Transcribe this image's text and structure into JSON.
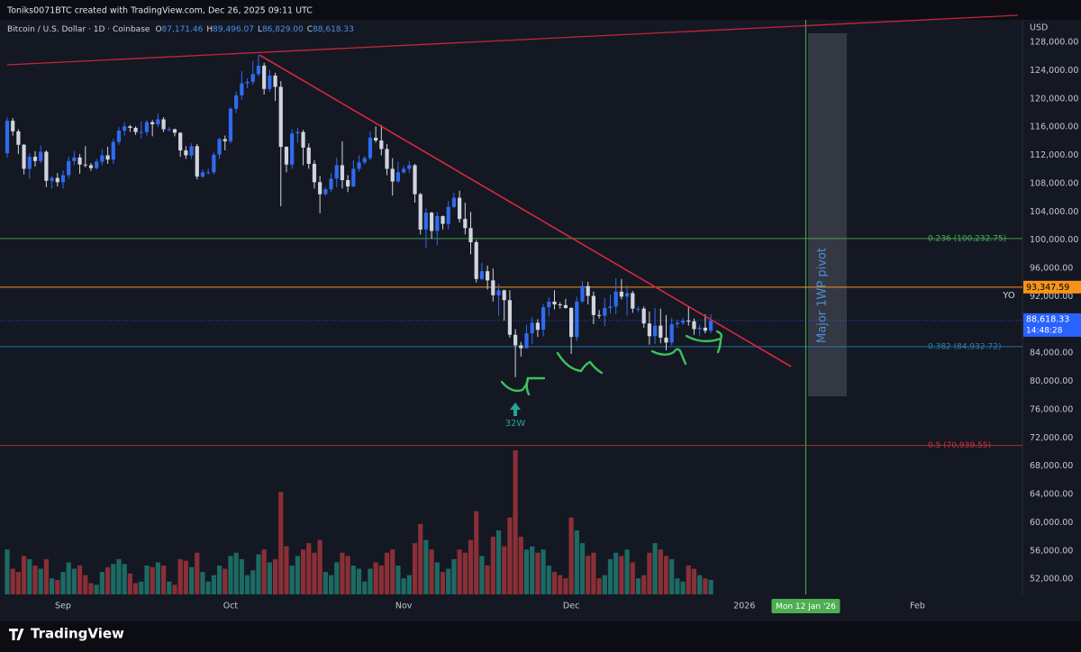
{
  "header": "Toniks0071BTC created with TradingView.com, Dec 26, 2025 09:11 UTC",
  "footer": "TradingView",
  "chart_data": {
    "type": "candlestick",
    "title": "Bitcoin / U.S. Dollar · 1D · Coinbase",
    "ohlc_keys": [
      "O",
      "H",
      "L",
      "C"
    ],
    "ohlc_labels": [
      "87,171.46",
      "89,496.07",
      "86,829.00",
      "88,618.33"
    ],
    "currency": "USD",
    "open": [
      112300,
      116900,
      115400,
      113500,
      110100,
      111800,
      111200,
      112500,
      108400,
      108800,
      108200,
      109200,
      111200,
      111700,
      110700,
      110600,
      110200,
      111100,
      112000,
      111400,
      113900,
      115500,
      116100,
      115900,
      115300,
      115300,
      116700,
      116400,
      117100,
      115700,
      115700,
      115200,
      112700,
      112000,
      113300,
      109000,
      109600,
      109600,
      112100,
      114300,
      114000,
      118600,
      120500,
      122200,
      122400,
      123500,
      124700,
      121400,
      123300,
      121700,
      113200,
      110700,
      115100,
      115300,
      113100,
      110800,
      108200,
      106500,
      107200,
      108700,
      110600,
      108500,
      107600,
      110100,
      111000,
      111600,
      114500,
      114100,
      112900,
      110100,
      108300,
      109600,
      110100,
      110600,
      106500,
      101500,
      103900,
      101300,
      103400,
      102300,
      104700,
      106000,
      103000,
      101700,
      99700,
      94500,
      95600,
      94300,
      92200,
      92900,
      91500,
      86600,
      85100,
      84700,
      86800,
      88300,
      87300,
      90500,
      91300,
      90900,
      90800,
      90400,
      86300,
      91300,
      93500,
      92100,
      89400,
      89300,
      90400,
      90600,
      92700,
      92000,
      92500,
      90300,
      90300,
      88200,
      86400,
      87900,
      86200,
      85500,
      88100,
      88300,
      88600,
      88500,
      87400,
      87600,
      87171.46
    ],
    "high": [
      117400,
      117300,
      115700,
      113600,
      112300,
      112600,
      113400,
      112700,
      109100,
      109500,
      109900,
      111800,
      112600,
      112200,
      113300,
      110900,
      111500,
      112900,
      113200,
      114300,
      116000,
      116700,
      116300,
      116100,
      116800,
      117000,
      117000,
      117900,
      117400,
      116000,
      115800,
      115300,
      113300,
      113700,
      113600,
      110000,
      110100,
      112400,
      114500,
      114800,
      118800,
      121000,
      123900,
      122900,
      125400,
      126200,
      125100,
      124100,
      123700,
      122500,
      113300,
      115700,
      115900,
      115600,
      113700,
      111300,
      109100,
      107500,
      109500,
      111700,
      114000,
      109200,
      111300,
      112000,
      111900,
      115400,
      116100,
      116300,
      113600,
      111600,
      111100,
      110500,
      111200,
      110800,
      106700,
      104500,
      104000,
      104000,
      103500,
      105500,
      106700,
      107000,
      105300,
      104000,
      100000,
      96800,
      96400,
      96000,
      93800,
      93000,
      92900,
      87400,
      85600,
      88000,
      89100,
      88800,
      91000,
      91900,
      92900,
      91200,
      91700,
      90500,
      92000,
      94200,
      94100,
      92700,
      90100,
      91800,
      92300,
      94600,
      94500,
      93600,
      92800,
      90600,
      90600,
      89900,
      90400,
      90300,
      89400,
      89000,
      88700,
      89000,
      90600,
      88900,
      88000,
      89500,
      89496.07
    ],
    "low": [
      111700,
      114800,
      112200,
      109300,
      108700,
      110400,
      110900,
      107500,
      107300,
      107600,
      107300,
      108700,
      110600,
      109400,
      110300,
      109800,
      110000,
      110600,
      110800,
      110800,
      113500,
      114800,
      115300,
      114900,
      114400,
      114800,
      114700,
      116000,
      115300,
      115400,
      114700,
      111800,
      111500,
      111500,
      108600,
      108800,
      109300,
      109300,
      111500,
      112700,
      113700,
      118000,
      119900,
      121500,
      122000,
      123200,
      120600,
      121000,
      119700,
      104800,
      109600,
      110100,
      113800,
      110600,
      110100,
      107300,
      103800,
      106300,
      106800,
      107500,
      107300,
      106800,
      107500,
      109700,
      110700,
      111300,
      113800,
      112000,
      109200,
      106300,
      108100,
      109400,
      109500,
      105300,
      100800,
      98900,
      100200,
      99300,
      101500,
      101500,
      104500,
      102500,
      100800,
      98000,
      94000,
      94300,
      93000,
      91300,
      89300,
      88600,
      86200,
      80600,
      83500,
      84700,
      85300,
      86300,
      86400,
      89200,
      90200,
      90300,
      90300,
      83900,
      85700,
      91100,
      90900,
      88100,
      88900,
      87800,
      89600,
      89500,
      91600,
      89300,
      89700,
      89800,
      87600,
      85200,
      85300,
      85400,
      84400,
      85100,
      87600,
      88000,
      87900,
      86600,
      86400,
      86800,
      86829.0
    ],
    "close": [
      116900,
      115400,
      113500,
      110100,
      111800,
      111200,
      112500,
      108400,
      108800,
      108200,
      109200,
      111200,
      111700,
      110700,
      110600,
      110200,
      111100,
      112000,
      111400,
      113900,
      115500,
      116100,
      115900,
      115300,
      115300,
      116700,
      116400,
      117100,
      115700,
      115700,
      115200,
      112700,
      112000,
      113300,
      109000,
      109600,
      109600,
      112100,
      114300,
      114000,
      118600,
      120500,
      122200,
      122400,
      123500,
      124700,
      121400,
      123300,
      121700,
      113200,
      110700,
      115100,
      115300,
      113100,
      110800,
      108200,
      106500,
      107200,
      108700,
      110600,
      108500,
      107600,
      110100,
      111000,
      111600,
      114500,
      114100,
      112900,
      110100,
      108300,
      109600,
      110100,
      110600,
      106500,
      101500,
      103900,
      101300,
      103400,
      102300,
      104700,
      106000,
      103000,
      101700,
      99700,
      94500,
      95600,
      94300,
      92200,
      92900,
      91500,
      86600,
      85100,
      84700,
      86800,
      88300,
      87300,
      90500,
      91300,
      90900,
      90800,
      90400,
      86300,
      91300,
      93500,
      92100,
      89400,
      89300,
      90400,
      90600,
      92700,
      92000,
      92500,
      90300,
      90300,
      88200,
      86400,
      87900,
      86200,
      85500,
      88100,
      88300,
      88600,
      88500,
      87400,
      87600,
      87171.46,
      88618.33
    ],
    "volume": [
      14000,
      8000,
      7000,
      12000,
      11000,
      9000,
      8000,
      11000,
      5000,
      4500,
      7000,
      10000,
      8000,
      9000,
      6000,
      3500,
      3000,
      7000,
      8500,
      9500,
      11000,
      9500,
      6500,
      3500,
      4000,
      9000,
      8500,
      10000,
      9000,
      4000,
      3000,
      11000,
      10500,
      8500,
      13000,
      7000,
      4000,
      6000,
      9000,
      8000,
      12000,
      13000,
      11000,
      6000,
      7500,
      12500,
      14000,
      10000,
      11000,
      32000,
      15000,
      9000,
      12000,
      14000,
      16000,
      13000,
      17000,
      7000,
      6000,
      10000,
      13000,
      12000,
      9000,
      8000,
      4000,
      8000,
      10000,
      9000,
      13000,
      14000,
      9000,
      5000,
      6000,
      16000,
      22000,
      17000,
      14000,
      10000,
      7000,
      8000,
      11000,
      14000,
      13000,
      17000,
      26000,
      12000,
      9000,
      18000,
      20000,
      15000,
      24000,
      45000,
      18000,
      14000,
      15000,
      13000,
      14000,
      9000,
      7000,
      6000,
      5000,
      24000,
      20000,
      16000,
      12000,
      13000,
      5000,
      6000,
      11000,
      13000,
      12000,
      14000,
      10000,
      5000,
      6000,
      13000,
      16000,
      14000,
      12000,
      11000,
      5000,
      4000,
      9000,
      8000,
      6000,
      5000,
      4500
    ],
    "up_color": "#2f6bf0",
    "down_color": "#d1d4dc",
    "volume_up_color": "#1d6a64",
    "volume_down_color": "#8a2f37",
    "ylim": [
      49850,
      131190
    ],
    "yticks": [
      {
        "value": 52000,
        "label": "52,000.00"
      },
      {
        "value": 56000,
        "label": "56,000.00"
      },
      {
        "value": 60000,
        "label": "60,000.00"
      },
      {
        "value": 64000,
        "label": "64,000.00"
      },
      {
        "value": 68000,
        "label": "68,000.00"
      },
      {
        "value": 72000,
        "label": "72,000.00"
      },
      {
        "value": 76000,
        "label": "76,000.00"
      },
      {
        "value": 80000,
        "label": "80,000.00"
      },
      {
        "value": 84000,
        "label": "84,000.00"
      },
      {
        "value": 92000,
        "label": "92,000.00"
      },
      {
        "value": 96000,
        "label": "96,000.00"
      },
      {
        "value": 100000,
        "label": "100,000.00"
      },
      {
        "value": 104000,
        "label": "104,000.00"
      },
      {
        "value": 108000,
        "label": "108,000.00"
      },
      {
        "value": 112000,
        "label": "112,000.00"
      },
      {
        "value": 116000,
        "label": "116,000.00"
      },
      {
        "value": 120000,
        "label": "120,000.00"
      },
      {
        "value": 124000,
        "label": "124,000.00"
      },
      {
        "value": 128000,
        "label": "128,000.00"
      }
    ],
    "xlim": [
      -1.29,
      181.8
    ],
    "xticks": [
      {
        "value": 10,
        "label": "Sep"
      },
      {
        "value": 40,
        "label": "Oct"
      },
      {
        "value": 71,
        "label": "Nov"
      },
      {
        "value": 101,
        "label": "Dec"
      },
      {
        "value": 132,
        "label": "2026"
      },
      {
        "value": 163,
        "label": "Feb"
      }
    ],
    "x_marker": {
      "value": 143,
      "label": "Mon 12 Jan '26",
      "color": "#4caf50"
    },
    "levels": [
      {
        "value": 100232.75,
        "label": "0.236 (100,232.75)",
        "color": "#4caf50"
      },
      {
        "value": 84932.72,
        "label": "0.382 (84,932.72)",
        "color": "#2b7fb0"
      },
      {
        "value": 70939.55,
        "label": "0.5 (70,939.55)",
        "color": "#c8313d"
      }
    ],
    "price_marker": {
      "value": 93347.59,
      "label": "93,347.59",
      "color": "#f7931a"
    },
    "last_price": {
      "value": 88618.33,
      "label": "88,618.33",
      "countdown": "14:48:28",
      "color": "#2962ff"
    },
    "annotations": {
      "yo": "YO",
      "pivot": "Major 1WP pivot",
      "week": "32W"
    }
  }
}
